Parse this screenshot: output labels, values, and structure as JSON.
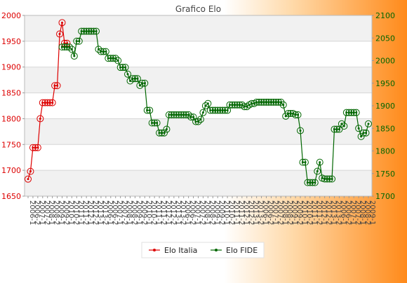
{
  "chart_data": {
    "type": "line",
    "title": "Grafico Elo",
    "xlabel": "",
    "ylabel_left": "",
    "ylabel_right": "",
    "left_axis": {
      "min": 1650,
      "max": 2000,
      "ticks": [
        1650,
        1700,
        1750,
        1800,
        1850,
        1900,
        1950,
        2000
      ],
      "color": "#dd0000"
    },
    "right_axis": {
      "min": 1700,
      "max": 2100,
      "ticks": [
        1700,
        1750,
        1800,
        1850,
        1900,
        1950,
        2000,
        2050,
        2100
      ],
      "color": "#006600"
    },
    "grid": true,
    "legend": {
      "position": "bottom-center",
      "entries": [
        "Elo Italia",
        "Elo FIDE"
      ]
    },
    "series": [
      {
        "name": "Elo Italia",
        "axis": "left",
        "color": "#dd0000",
        "values": [
          1683,
          1698,
          1744,
          1744,
          1744,
          1800,
          1831,
          1831,
          1831,
          1831,
          1831,
          1864,
          1864,
          1964,
          1986,
          1946,
          1946
        ]
      },
      {
        "name": "Elo FIDE",
        "axis": "right",
        "color": "#006600",
        "values": [
          2030,
          2030,
          2030,
          2030,
          2025,
          2010,
          2043,
          2043,
          2065,
          2065,
          2065,
          2065,
          2065,
          2065,
          2065,
          2025,
          2020,
          2020,
          2020,
          2005,
          2005,
          2005,
          2005,
          2000,
          1985,
          1985,
          1985,
          1970,
          1955,
          1960,
          1960,
          1960,
          1945,
          1950,
          1950,
          1890,
          1890,
          1862,
          1862,
          1862,
          1840,
          1840,
          1840,
          1848,
          1880,
          1880,
          1880,
          1880,
          1880,
          1880,
          1880,
          1880,
          1880,
          1875,
          1875,
          1865,
          1865,
          1870,
          1885,
          1900,
          1905,
          1890,
          1890,
          1890,
          1890,
          1890,
          1890,
          1890,
          1890,
          1902,
          1902,
          1902,
          1902,
          1902,
          1902,
          1898,
          1898,
          1902,
          1905,
          1905,
          1908,
          1908,
          1908,
          1908,
          1908,
          1908,
          1908,
          1908,
          1908,
          1908,
          1908,
          1902,
          1877,
          1883,
          1883,
          1883,
          1880,
          1880,
          1845,
          1775,
          1775,
          1730,
          1730,
          1730,
          1730,
          1755,
          1775,
          1740,
          1738,
          1738,
          1738,
          1738,
          1848,
          1848,
          1848,
          1860,
          1855,
          1885,
          1885,
          1885,
          1885,
          1885,
          1850,
          1832,
          1840,
          1840,
          1860
        ]
      }
    ],
    "x_tick_label_samples": [
      "2006-1",
      "2006-2",
      "2007-1",
      "2007-2",
      "2008-1",
      "2008-2",
      "2009-1",
      "2009-2",
      "2010-1",
      "2010-2",
      "2011-1",
      "2011-2",
      "2012-1",
      "2012-2",
      "2013-1",
      "2013-2"
    ]
  }
}
